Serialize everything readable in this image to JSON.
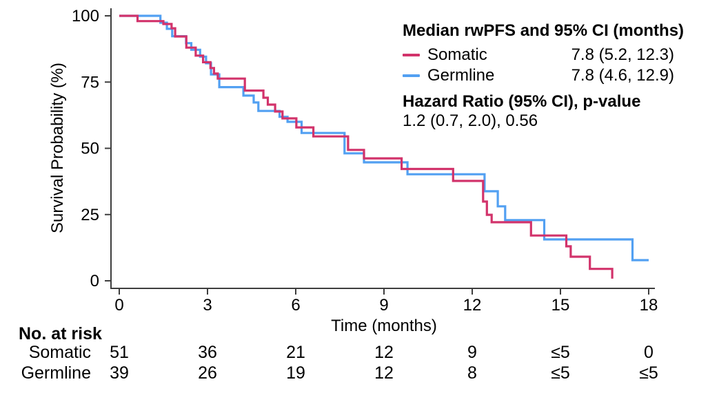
{
  "chart_data": {
    "type": "line",
    "subtype": "kaplan-meier-step",
    "title": "",
    "xlabel": "Time (months)",
    "ylabel": "Survival Probability (%)",
    "xlim": [
      0,
      18
    ],
    "ylim": [
      0,
      100
    ],
    "x_ticks": [
      0,
      3,
      6,
      9,
      12,
      15,
      18
    ],
    "y_ticks": [
      0,
      25,
      50,
      75,
      100
    ],
    "grid": false,
    "legend_position": "top-right",
    "axis_color": "#3d3d3d",
    "tick_label_color": "#000000",
    "series": [
      {
        "name": "Somatic",
        "color": "#d2336b",
        "points": [
          [
            0,
            100
          ],
          [
            0.62,
            98
          ],
          [
            1.5,
            96.9
          ],
          [
            1.78,
            95.3
          ],
          [
            1.9,
            92.2
          ],
          [
            2.28,
            88
          ],
          [
            2.6,
            85
          ],
          [
            2.85,
            82.5
          ],
          [
            3.1,
            80.3
          ],
          [
            3.22,
            78.2
          ],
          [
            3.35,
            76.3
          ],
          [
            4.27,
            71.8
          ],
          [
            4.9,
            69.1
          ],
          [
            5.05,
            66.5
          ],
          [
            5.3,
            63.9
          ],
          [
            5.55,
            61.3
          ],
          [
            6.02,
            57.9
          ],
          [
            6.6,
            54.5
          ],
          [
            7.78,
            49.4
          ],
          [
            8.32,
            46.2
          ],
          [
            9.6,
            42.2
          ],
          [
            11.35,
            37.7
          ],
          [
            12.37,
            29.9
          ],
          [
            12.5,
            24.9
          ],
          [
            12.66,
            22.1
          ],
          [
            14.0,
            17.1
          ],
          [
            15.2,
            13.0
          ],
          [
            15.35,
            9.1
          ],
          [
            16.0,
            4.5
          ],
          [
            16.76,
            0.8
          ]
        ]
      },
      {
        "name": "Germline",
        "color": "#52a0f2",
        "points": [
          [
            0,
            100
          ],
          [
            1.4,
            97.4
          ],
          [
            1.62,
            95.1
          ],
          [
            1.8,
            92.3
          ],
          [
            2.27,
            89.7
          ],
          [
            2.45,
            87.2
          ],
          [
            2.75,
            84.6
          ],
          [
            2.95,
            82.1
          ],
          [
            3.12,
            77.9
          ],
          [
            3.4,
            73.1
          ],
          [
            4.22,
            69.9
          ],
          [
            4.57,
            67.3
          ],
          [
            4.73,
            64.1
          ],
          [
            5.45,
            61.9
          ],
          [
            5.72,
            60.0
          ],
          [
            6.2,
            55.8
          ],
          [
            7.66,
            48.1
          ],
          [
            8.32,
            44.7
          ],
          [
            9.8,
            40.2
          ],
          [
            12.42,
            33.8
          ],
          [
            12.87,
            28.1
          ],
          [
            13.12,
            22.9
          ],
          [
            14.45,
            15.6
          ],
          [
            17.45,
            7.8
          ],
          [
            18,
            7.8
          ]
        ]
      }
    ]
  },
  "legend": {
    "median_title": "Median rwPFS and 95% CI (months)",
    "rows": [
      {
        "label": "Somatic",
        "value": "7.8 (5.2, 12.3)"
      },
      {
        "label": "Germline",
        "value": "7.8 (4.6, 12.9)"
      }
    ],
    "hr_title": "Hazard Ratio (95% CI), p-value",
    "hr_value": "1.2 (0.7, 2.0), 0.56"
  },
  "risk_table": {
    "title": "No. at risk",
    "time_points": [
      0,
      3,
      6,
      9,
      12,
      15,
      18
    ],
    "rows": [
      {
        "label": "Somatic",
        "values": [
          "51",
          "36",
          "21",
          "12",
          "9",
          "≤5",
          "0"
        ]
      },
      {
        "label": "Germline",
        "values": [
          "39",
          "26",
          "19",
          "12",
          "8",
          "≤5",
          "≤5"
        ]
      }
    ]
  }
}
